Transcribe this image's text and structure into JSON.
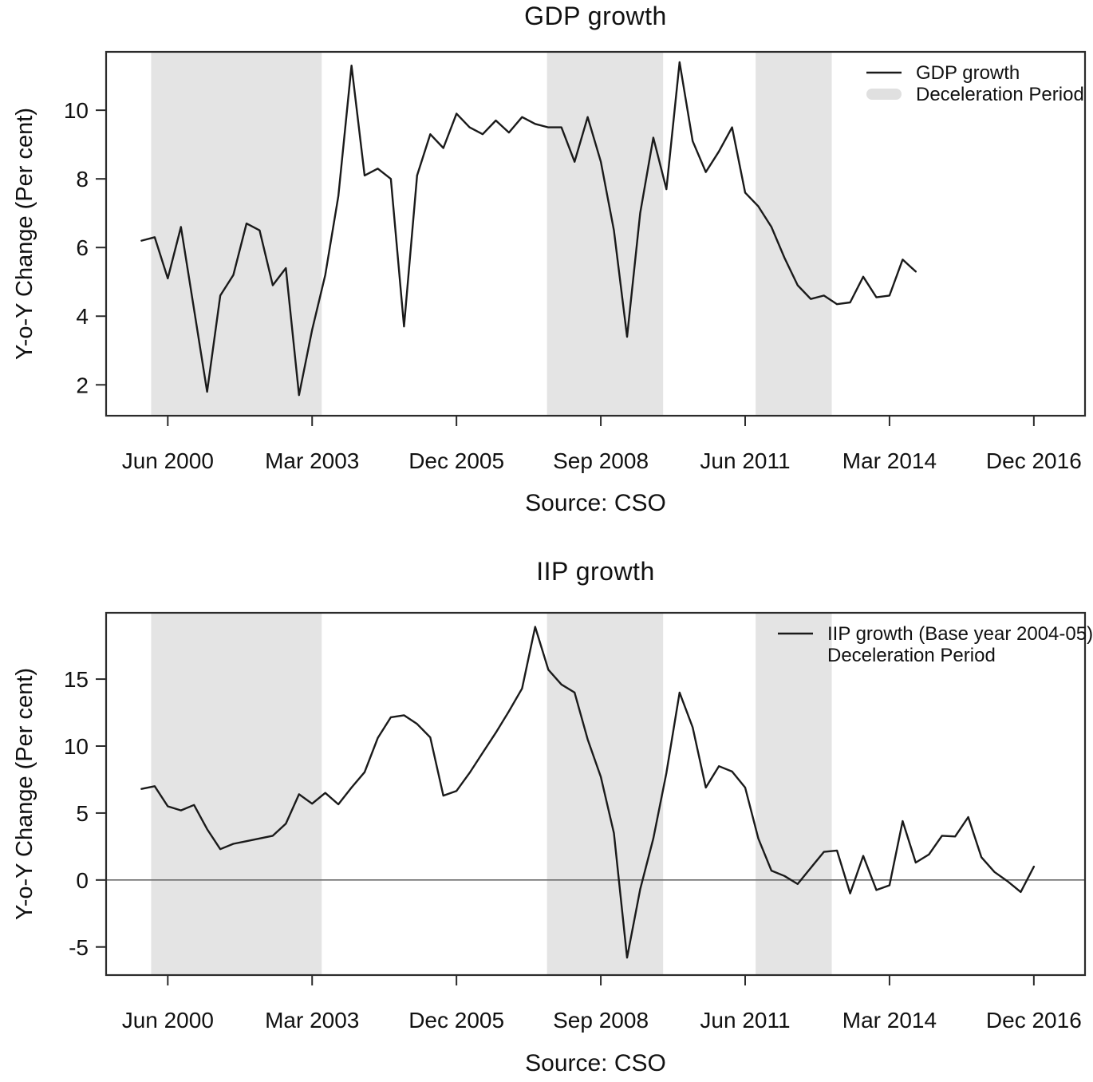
{
  "page": {
    "background": "#ffffff"
  },
  "colors": {
    "line": "#1a1a1a",
    "band": "#e4e4e4",
    "legend_band_swatch": "#e0e0e0",
    "zero_line": "#6b6b6b",
    "box_border": "#2b2b2b",
    "text": "#111111"
  },
  "chart_data": [
    {
      "id": "gdp",
      "type": "line",
      "title": "GDP growth",
      "ylabel": "Y-o-Y Change (Per cent)",
      "source": "Source: CSO",
      "grid": false,
      "legend_position": "top-right",
      "legend": [
        {
          "swatch": "line",
          "label": "GDP growth"
        },
        {
          "swatch": "band",
          "label": "Deceleration Period"
        }
      ],
      "x_ticks": [
        {
          "label": "Jun 2000",
          "i": 2
        },
        {
          "label": "Mar 2003",
          "i": 13
        },
        {
          "label": "Dec 2005",
          "i": 24
        },
        {
          "label": "Sep 2008",
          "i": 35
        },
        {
          "label": "Jun 2011",
          "i": 46
        },
        {
          "label": "Mar 2014",
          "i": 57
        },
        {
          "label": "Dec 2016",
          "i": 68
        }
      ],
      "y_ticks": [
        2,
        4,
        6,
        8,
        10
      ],
      "xlim": [
        -2.7,
        71.9
      ],
      "ylim": [
        1.1,
        11.7
      ],
      "zero_line": false,
      "bands": [
        [
          0.73,
          13.73
        ],
        [
          30.9,
          39.75
        ],
        [
          46.8,
          52.6
        ]
      ],
      "series": [
        {
          "name": "GDP growth",
          "i_start": 0,
          "values": [
            6.2,
            6.3,
            5.1,
            6.6,
            4.2,
            1.8,
            4.6,
            5.2,
            6.7,
            6.5,
            4.9,
            5.4,
            1.7,
            3.6,
            5.2,
            7.5,
            11.3,
            8.1,
            8.3,
            8.0,
            3.7,
            8.1,
            9.3,
            8.9,
            9.9,
            9.5,
            9.3,
            9.7,
            9.35,
            9.8,
            9.6,
            9.5,
            9.5,
            8.5,
            9.8,
            8.5,
            6.5,
            3.4,
            7.0,
            9.2,
            7.7,
            11.4,
            9.1,
            8.2,
            8.8,
            9.5,
            7.6,
            7.2,
            6.6,
            5.7,
            4.9,
            4.5,
            4.6,
            4.35,
            4.4,
            5.15,
            4.55,
            4.6,
            5.65,
            5.3
          ]
        }
      ]
    },
    {
      "id": "iip",
      "type": "line",
      "title": "IIP growth",
      "ylabel": "Y-o-Y Change (Per cent)",
      "source": "Source: CSO",
      "grid": false,
      "legend_position": "top-right",
      "legend": [
        {
          "swatch": "line",
          "label": "IIP growth (Base year 2004-05)"
        },
        {
          "swatch": "none",
          "label": "Deceleration Period"
        }
      ],
      "x_ticks": [
        {
          "label": "Jun 2000",
          "i": 2
        },
        {
          "label": "Mar 2003",
          "i": 13
        },
        {
          "label": "Dec 2005",
          "i": 24
        },
        {
          "label": "Sep 2008",
          "i": 35
        },
        {
          "label": "Jun 2011",
          "i": 46
        },
        {
          "label": "Mar 2014",
          "i": 57
        },
        {
          "label": "Dec 2016",
          "i": 68
        }
      ],
      "y_ticks": [
        -5,
        0,
        5,
        10,
        15
      ],
      "xlim": [
        -2.7,
        71.9
      ],
      "ylim": [
        -7.1,
        19.95
      ],
      "zero_line": true,
      "bands": [
        [
          0.73,
          13.73
        ],
        [
          30.9,
          39.75
        ],
        [
          46.8,
          52.6
        ]
      ],
      "series": [
        {
          "name": "IIP growth (Base year 2004-05)",
          "i_start": 0,
          "values": [
            6.8,
            7.0,
            5.5,
            5.2,
            5.6,
            3.8,
            2.3,
            2.7,
            2.9,
            3.1,
            3.3,
            4.2,
            6.4,
            5.7,
            6.5,
            5.65,
            6.9,
            8.05,
            10.6,
            12.15,
            12.3,
            11.65,
            10.65,
            6.3,
            6.65,
            8.0,
            9.5,
            11.0,
            12.6,
            14.3,
            18.9,
            15.7,
            14.6,
            14.0,
            10.5,
            7.7,
            3.5,
            -5.8,
            -0.7,
            3.1,
            8.0,
            14.0,
            11.4,
            6.9,
            8.5,
            8.1,
            6.9,
            3.1,
            0.7,
            0.3,
            -0.3,
            0.9,
            2.1,
            2.2,
            -1.0,
            1.8,
            -0.75,
            -0.4,
            4.4,
            1.3,
            1.9,
            3.3,
            3.25,
            4.7,
            1.7,
            0.6,
            -0.1,
            -0.9,
            1.0
          ]
        }
      ]
    }
  ]
}
